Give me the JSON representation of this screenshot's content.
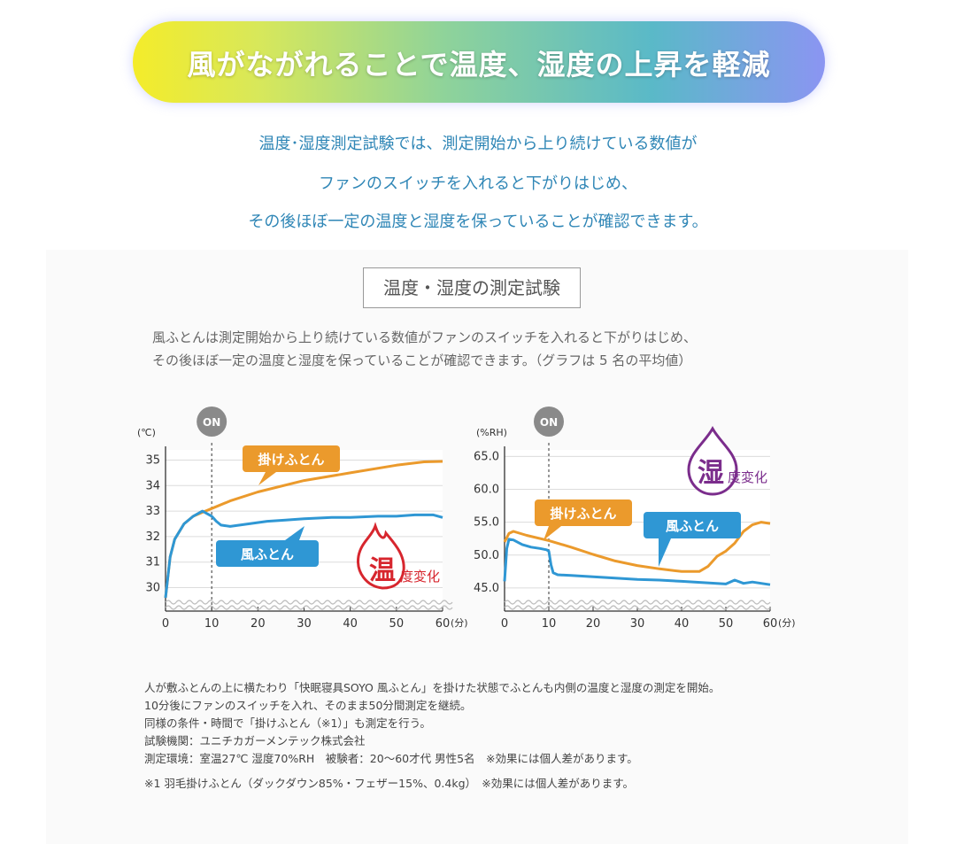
{
  "banner": {
    "title": "風がながれることで温度、湿度の上昇を軽減"
  },
  "intro": [
    "温度･湿度測定試験では、測定開始から上り続けている数値が",
    "ファンのスイッチを入れると下がりはじめ、",
    "その後ほぼ一定の温度と湿度を保っていることが確認できます。"
  ],
  "test_box": {
    "title": "温度・湿度の測定試験"
  },
  "description": [
    "風ふとんは測定開始から上り続けている数値がファンのスイッチを入れると下がりはじめ、",
    "その後ほぼ一定の温度と湿度を保っていることが確認できます。（グラフは 5 名の平均値）"
  ],
  "notes": [
    "人が敷ふとんの上に横たわり「快眠寝具SOYO 風ふとん」を掛けた状態でふとんも内側の温度と湿度の測定を開始。",
    "10分後にファンのスイッチを入れ、そのまま50分間測定を継続。",
    "同様の条件・時間で「掛けふとん（※1）」も測定を行う。",
    "試験機関：ユニチカガーメンテック株式会社",
    "測定環境：室温27℃ 湿度70%RH　被験者：20～60才代 男性5名　※効果には個人差があります。"
  ],
  "footnote": "※1 羽毛掛けふとん（ダックダウン85%・フェザー15%、0.4kg）　※効果には個人差があります。",
  "chart_data": [
    {
      "type": "line",
      "unit": "(℃)",
      "x_unit": "(分)",
      "x_ticks": [
        "0",
        "10",
        "20",
        "30",
        "40",
        "50",
        "60"
      ],
      "y_ticks": [
        "30",
        "31",
        "32",
        "33",
        "34",
        "35"
      ],
      "xlim": [
        0,
        60
      ],
      "ylim": [
        29.6,
        35.4
      ],
      "marker": {
        "label": "ON",
        "x": 10
      },
      "badge": {
        "big": "温",
        "small": "度変化",
        "color": "#d7262e"
      },
      "series": [
        {
          "name": "掛けふとん",
          "color": "#eb9a2c",
          "x": [
            0,
            1,
            2,
            4,
            6,
            8,
            10,
            14,
            20,
            30,
            40,
            50,
            56,
            60
          ],
          "y": [
            29.6,
            31.2,
            31.9,
            32.5,
            32.8,
            32.95,
            33.1,
            33.4,
            33.75,
            34.2,
            34.5,
            34.8,
            34.93,
            34.95
          ]
        },
        {
          "name": "風ふとん",
          "color": "#2f97d4",
          "x": [
            0,
            1,
            2,
            4,
            6,
            8,
            10,
            11,
            12,
            14,
            18,
            22,
            26,
            30,
            36,
            40,
            46,
            50,
            54,
            58,
            60
          ],
          "y": [
            29.6,
            31.2,
            31.9,
            32.5,
            32.8,
            33.0,
            32.8,
            32.6,
            32.45,
            32.4,
            32.5,
            32.6,
            32.65,
            32.7,
            32.75,
            32.75,
            32.8,
            32.8,
            32.85,
            32.85,
            32.75
          ]
        }
      ]
    },
    {
      "type": "line",
      "unit": "(%RH)",
      "x_unit": "(分)",
      "x_ticks": [
        "0",
        "10",
        "20",
        "30",
        "40",
        "50",
        "60"
      ],
      "y_ticks": [
        "45.0",
        "50.0",
        "55.0",
        "60.0",
        "65.0"
      ],
      "xlim": [
        0,
        60
      ],
      "ylim": [
        43.5,
        66
      ],
      "marker": {
        "label": "ON",
        "x": 10
      },
      "badge": {
        "big": "湿",
        "small": "度変化",
        "color": "#7b2d8c"
      },
      "series": [
        {
          "name": "掛けふとん",
          "color": "#eb9a2c",
          "x": [
            0,
            1,
            2,
            5,
            10,
            15,
            20,
            25,
            30,
            35,
            40,
            44,
            46,
            48,
            50,
            52,
            54,
            56,
            58,
            60
          ],
          "y": [
            52,
            53.3,
            53.6,
            53,
            52.2,
            51.2,
            50.1,
            49.1,
            48.4,
            47.9,
            47.5,
            47.5,
            48.3,
            49.8,
            50.6,
            51.8,
            53.6,
            54.6,
            55,
            54.8
          ]
        },
        {
          "name": "風ふとん",
          "color": "#2f97d4",
          "x": [
            0,
            0.5,
            1,
            2,
            4,
            6,
            8,
            9.5,
            10,
            10.5,
            11,
            12,
            15,
            20,
            25,
            30,
            35,
            40,
            45,
            50,
            52,
            54,
            56,
            58,
            60
          ],
          "y": [
            46,
            51,
            52.4,
            52.3,
            51.6,
            51.2,
            51,
            50.8,
            50.6,
            48.5,
            47.3,
            47,
            46.9,
            46.7,
            46.5,
            46.3,
            46.2,
            46,
            45.8,
            45.6,
            46.2,
            45.7,
            45.9,
            45.7,
            45.5
          ]
        }
      ]
    }
  ]
}
